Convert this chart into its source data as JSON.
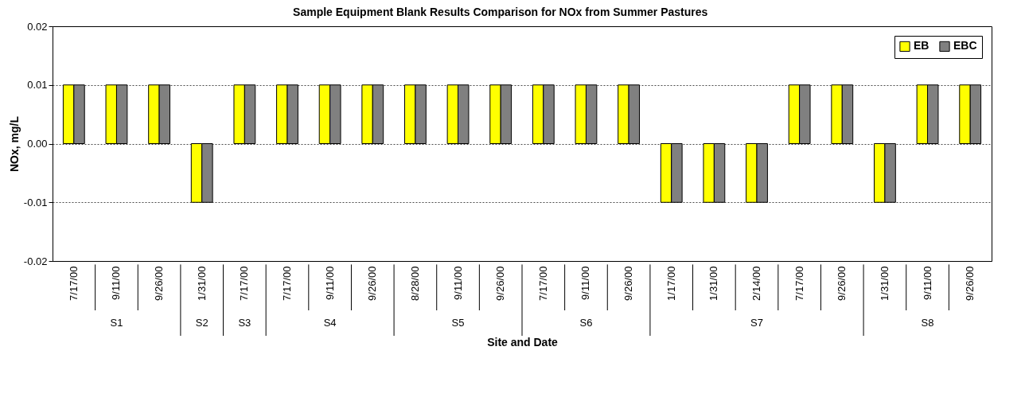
{
  "chart_data": {
    "type": "bar",
    "title": "Sample Equipment Blank Results Comparison for NOx from Summer Pastures",
    "xlabel": "Site and Date",
    "ylabel": "NOx, mg/L",
    "categories": [
      "7/17/00",
      "9/11/00",
      "9/26/00",
      "1/31/00",
      "7/17/00",
      "7/17/00",
      "9/11/00",
      "9/26/00",
      "8/28/00",
      "9/11/00",
      "9/26/00",
      "7/17/00",
      "9/11/00",
      "9/26/00",
      "1/17/00",
      "1/31/00",
      "2/14/00",
      "7/17/00",
      "9/26/00",
      "1/31/00",
      "9/11/00",
      "9/26/00"
    ],
    "series": [
      {
        "name": "EB",
        "color": "#ffff00",
        "values": [
          0.01,
          0.01,
          0.01,
          -0.01,
          0.01,
          0.01,
          0.01,
          0.01,
          0.01,
          0.01,
          0.01,
          0.01,
          0.01,
          0.01,
          -0.01,
          -0.01,
          -0.01,
          0.01,
          0.01,
          -0.01,
          0.01,
          0.01
        ]
      },
      {
        "name": "EBC",
        "color": "#808080",
        "values": [
          0.01,
          0.01,
          0.01,
          -0.01,
          0.01,
          0.01,
          0.01,
          0.01,
          0.01,
          0.01,
          0.01,
          0.01,
          0.01,
          0.01,
          -0.01,
          -0.01,
          -0.01,
          0.01,
          0.01,
          -0.01,
          0.01,
          0.01
        ]
      }
    ],
    "annotations": [
      "S1",
      "S2",
      "S3",
      "S4",
      "S5",
      "S6",
      "S7",
      "S8"
    ],
    "ylim": [
      -0.02,
      0.02
    ],
    "yticks": [
      {
        "value": -0.02,
        "label": "-0.02"
      },
      {
        "value": -0.01,
        "label": "-0.01"
      },
      {
        "value": 0,
        "label": "0.00"
      },
      {
        "value": 0.01,
        "label": "0.01"
      },
      {
        "value": 0.02,
        "label": "0.02"
      }
    ],
    "grid": "y",
    "legend": "top right"
  }
}
